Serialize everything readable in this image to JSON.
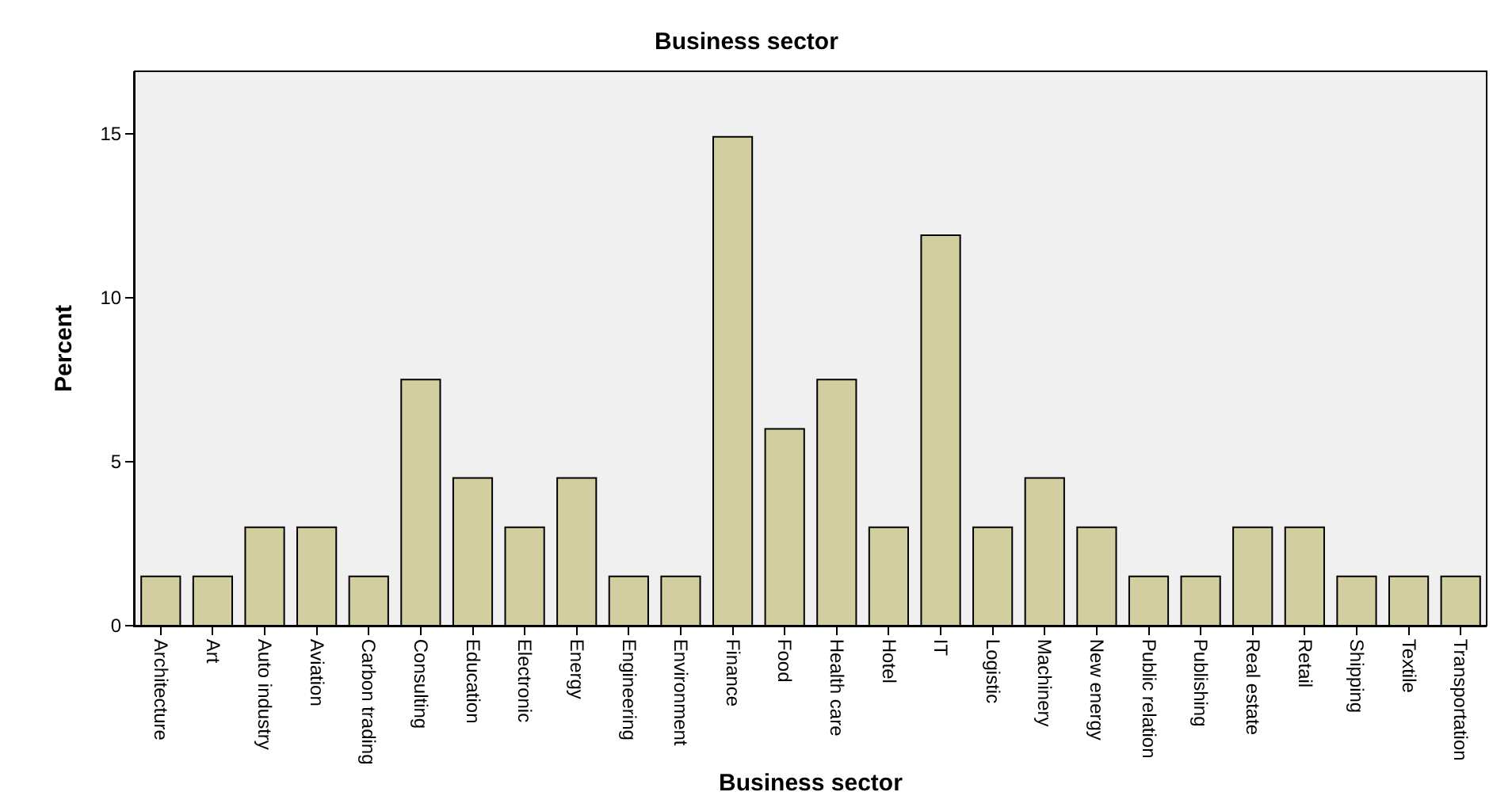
{
  "chart_data": {
    "type": "bar",
    "title": "Business sector",
    "xlabel": "Business sector",
    "ylabel": "Percent",
    "categories": [
      "Architecture",
      "Art",
      "Auto industry",
      "Aviation",
      "Carbon trading",
      "Consulting",
      "Education",
      "Electronic",
      "Energy",
      "Engineering",
      "Environment",
      "Finance",
      "Food",
      "Health care",
      "Hotel",
      "IT",
      "Logistic",
      "Machinery",
      "New energy",
      "Public relation",
      "Publishing",
      "Real estate",
      "Retail",
      "Shipping",
      "Textile",
      "Transportation"
    ],
    "values": [
      1.5,
      1.5,
      3,
      3,
      1.5,
      7.5,
      4.5,
      3,
      4.5,
      1.5,
      1.5,
      14.9,
      6,
      7.5,
      3,
      11.9,
      3,
      4.5,
      3,
      1.5,
      1.5,
      3,
      3,
      1.5,
      1.5,
      1.5
    ],
    "color": "#d3ce9f",
    "ylim": [
      0,
      16.9
    ],
    "yticks": [
      0,
      5,
      10,
      15
    ],
    "grid": false
  }
}
